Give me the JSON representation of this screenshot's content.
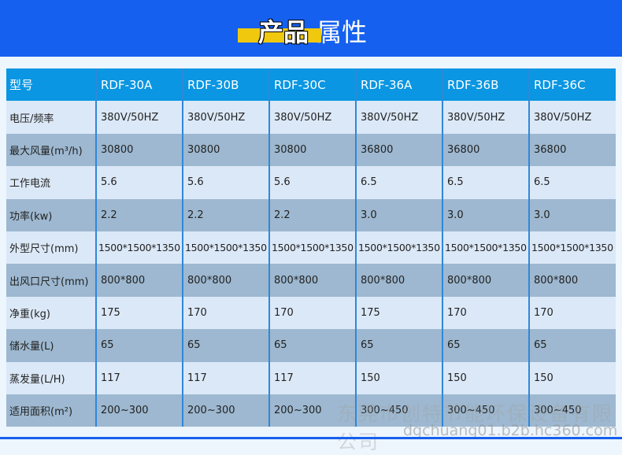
{
  "header": {
    "title_highlight": "产品",
    "title_rest": "属性"
  },
  "table": {
    "headers": [
      "型号",
      "RDF-30A",
      "RDF-30B",
      "RDF-30C",
      "RDF-36A",
      "RDF-36B",
      "RDF-36C"
    ],
    "rows": [
      [
        "电压/频率",
        "380V/50HZ",
        "380V/50HZ",
        "380V/50HZ",
        "380V/50HZ",
        "380V/50HZ",
        "380V/50HZ"
      ],
      [
        "最大风量(m³/h)",
        "30800",
        "30800",
        "30800",
        "36800",
        "36800",
        "36800"
      ],
      [
        "工作电流",
        "5.6",
        "5.6",
        "5.6",
        "6.5",
        "6.5",
        "6.5"
      ],
      [
        "功率(kw)",
        "2.2",
        "2.2",
        "2.2",
        "3.0",
        "3.0",
        "3.0"
      ],
      [
        "外型尺寸(mm)",
        "1500*1500*1350",
        "1500*1500*1350",
        "1500*1500*1350",
        "1500*1500*1350",
        "1500*1500*1350",
        "1500*1500*1350"
      ],
      [
        "出风口尺寸(mm)",
        "800*800",
        "800*800",
        "800*800",
        "800*800",
        "800*800",
        "800*800"
      ],
      [
        "净重(kg)",
        "175",
        "170",
        "170",
        "175",
        "170",
        "170"
      ],
      [
        "储水量(L)",
        "65",
        "65",
        "65",
        "65",
        "65",
        "65"
      ],
      [
        "蒸发量(L/H)",
        "117",
        "117",
        "117",
        "150",
        "150",
        "150"
      ],
      [
        "适用面积(m²)",
        "200~300",
        "200~300",
        "200~300",
        "300~450",
        "300~450",
        "300~450"
      ]
    ]
  },
  "watermark": {
    "company": "东莞市创特节能环保设备有限公司",
    "url": "dgchuang01.b2b.hc360.com"
  },
  "colors": {
    "header_bg": "#1560ee",
    "accent": "#f0c90f",
    "table_header": "#0a96e2",
    "row_light": "#dbe8f7",
    "row_dark": "#9db8d0"
  }
}
